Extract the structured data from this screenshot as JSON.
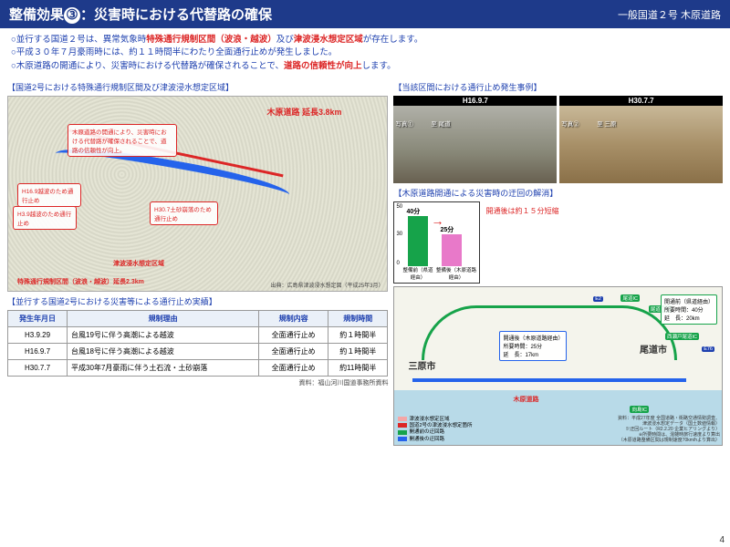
{
  "header": {
    "title_prefix": "整備効果",
    "num": "③",
    "title_rest": "：災害時における代替路の確保",
    "route": "一般国道２号 木原道路"
  },
  "bullets": [
    {
      "parts": [
        {
          "t": "○並行する国道２号は、異常気象時",
          "c": "b"
        },
        {
          "t": "特殊通行規制区間（波浪・越波）",
          "c": "r"
        },
        {
          "t": "及び",
          "c": "b"
        },
        {
          "t": "津波浸水想定区域",
          "c": "r"
        },
        {
          "t": "が存在します。",
          "c": "b"
        }
      ]
    },
    {
      "parts": [
        {
          "t": "○平成３０年７月豪雨時には、約１１時間半にわたり全面通行止めが発生しました。",
          "c": "b"
        }
      ]
    },
    {
      "parts": [
        {
          "t": "○木原道路の開通により、災害時における代替路が確保されることで、",
          "c": "b"
        },
        {
          "t": "道路の信頼性が向上",
          "c": "r"
        },
        {
          "t": "します。",
          "c": "b"
        }
      ]
    }
  ],
  "map1": {
    "title": "【国道2号における特殊通行規制区間及び津波浸水想定区域】",
    "ext": "木原道路 延長3.8km",
    "balloon": "木原道路の開通により、災害時における代替路が確保されることで、道路の信頼性が向上。",
    "labels": {
      "h169": "H16.9越波のため通行止め",
      "h39": "H3.9越波のため通行止め",
      "h307": "H30.7土砂崩落のため通行止め",
      "tsunami": "津波浸水想定区域",
      "special": "特殊通行規制区間（波浪・越波）延長2.3km"
    },
    "src": "出典：広島県津波浸水想定図（平成25年3月）"
  },
  "table": {
    "title": "【並行する国道2号における災害等による通行止め実績】",
    "headers": [
      "発生年月日",
      "規制理由",
      "規制内容",
      "規制時間"
    ],
    "rows": [
      [
        "H3.9.29",
        "台風19号に伴う高潮による越波",
        "全面通行止め",
        "約１時間半"
      ],
      [
        "H16.9.7",
        "台風18号に伴う高潮による越波",
        "全面通行止め",
        "約１時間半"
      ],
      [
        "H30.7.7",
        "平成30年7月豪雨に伴う土石流・土砂崩落",
        "全面通行止め",
        "約11時間半"
      ]
    ],
    "src": "資料：福山河川国道事務所資料"
  },
  "photos": {
    "title": "【当該区間における通行止め発生事例】",
    "items": [
      {
        "date": "H16.9.7",
        "cap": "写真①",
        "loc": "至 尾道"
      },
      {
        "date": "H30.7.7",
        "cap": "写真②",
        "loc": "至 三原"
      }
    ]
  },
  "chart": {
    "title": "【木原道路開通による災害時の迂回の解消】",
    "ylabels": [
      "50",
      "30",
      "0"
    ],
    "bars": [
      {
        "label": "整備前（県道経由）",
        "val": "40分"
      },
      {
        "label": "整備後（木原道路経由）",
        "val": "25分"
      }
    ],
    "note": "開通後は約１５分短縮"
  },
  "map2": {
    "cities": {
      "mihara": "三原市",
      "onomichi": "尾道市"
    },
    "redlabel": "木原道路",
    "info1": {
      "l1": "開通前（県道経由）",
      "l2": "所要時間：40分",
      "l3": "延　長：20km"
    },
    "info2": {
      "l1": "開通後（木原道路経由）",
      "l2": "所要時間：25分",
      "l3": "延　長：17km"
    },
    "ic": {
      "onomichi": "尾道IC",
      "onomichijct": "尾道JCT",
      "nishiseto": "西瀬戸尾道IC",
      "mukaishima": "向島IC"
    },
    "e": {
      "e2": "E2",
      "e76": "E76"
    },
    "legend": [
      {
        "c": "#f4a6a6",
        "t": "津波浸水想定区域"
      },
      {
        "c": "#dc2626",
        "t": "国道2号の津波浸水想定箇所"
      },
      {
        "c": "#16a34a",
        "t": "開通前の迂回路"
      },
      {
        "c": "#2563eb",
        "t": "開通後の迂回路"
      }
    ],
    "src": "資料：平成27年度 全国道路・街路交通情勢調査、\n津波浸水想定データ（国土数値情報）\n※迂回ルート（R2.2.20 企業ヒアリングより）\n※所要時間は、混雑時旅行速度より算出\n（木原道路整備区間は規制速度70km/hより算出）"
  },
  "pagenum": "4"
}
